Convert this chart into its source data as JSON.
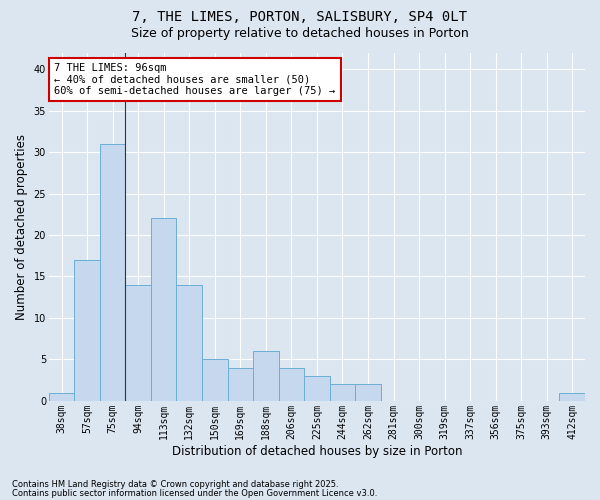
{
  "title1": "7, THE LIMES, PORTON, SALISBURY, SP4 0LT",
  "title2": "Size of property relative to detached houses in Porton",
  "xlabel": "Distribution of detached houses by size in Porton",
  "ylabel": "Number of detached properties",
  "categories": [
    "38sqm",
    "57sqm",
    "75sqm",
    "94sqm",
    "113sqm",
    "132sqm",
    "150sqm",
    "169sqm",
    "188sqm",
    "206sqm",
    "225sqm",
    "244sqm",
    "262sqm",
    "281sqm",
    "300sqm",
    "319sqm",
    "337sqm",
    "356sqm",
    "375sqm",
    "393sqm",
    "412sqm"
  ],
  "values": [
    1,
    17,
    31,
    14,
    22,
    14,
    5,
    4,
    6,
    4,
    3,
    2,
    2,
    0,
    0,
    0,
    0,
    0,
    0,
    0,
    1
  ],
  "bar_color": "#c5d8ee",
  "bar_edge_color": "#6baed6",
  "background_color": "#dce6f1",
  "grid_color": "#ffffff",
  "annotation_box_text": "7 THE LIMES: 96sqm\n← 40% of detached houses are smaller (50)\n60% of semi-detached houses are larger (75) →",
  "annotation_box_color": "#ffffff",
  "annotation_box_edge_color": "#cc0000",
  "ylim": [
    0,
    42
  ],
  "yticks": [
    0,
    5,
    10,
    15,
    20,
    25,
    30,
    35,
    40
  ],
  "footnote1": "Contains HM Land Registry data © Crown copyright and database right 2025.",
  "footnote2": "Contains public sector information licensed under the Open Government Licence v3.0.",
  "title_fontsize": 10,
  "subtitle_fontsize": 9,
  "tick_fontsize": 7,
  "axis_label_fontsize": 8.5,
  "annotation_fontsize": 7.5,
  "footnote_fontsize": 6
}
